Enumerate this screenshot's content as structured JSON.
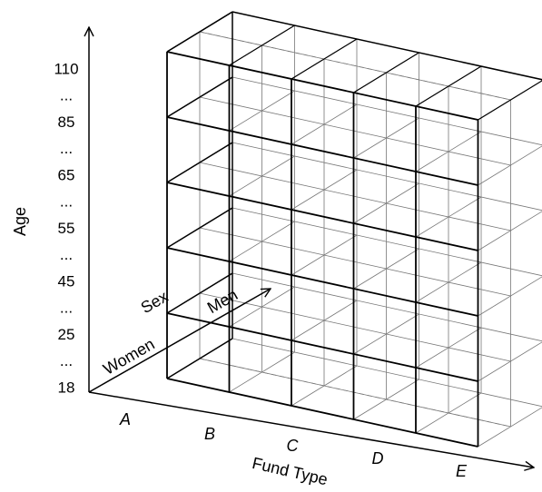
{
  "diagram": {
    "age_axis": {
      "title": "Age",
      "ticks": [
        "110",
        "...",
        "85",
        "...",
        "65",
        "...",
        "55",
        "...",
        "45",
        "...",
        "25",
        "...",
        "18"
      ]
    },
    "fund_axis": {
      "title": "Fund Type",
      "categories": [
        "A",
        "B",
        "C",
        "D",
        "E"
      ]
    },
    "sex_axis": {
      "title": "Sex",
      "categories": [
        "Women",
        "Men"
      ]
    },
    "colors": {
      "line": "#000000",
      "guide": "#777777",
      "background": "#ffffff"
    }
  }
}
